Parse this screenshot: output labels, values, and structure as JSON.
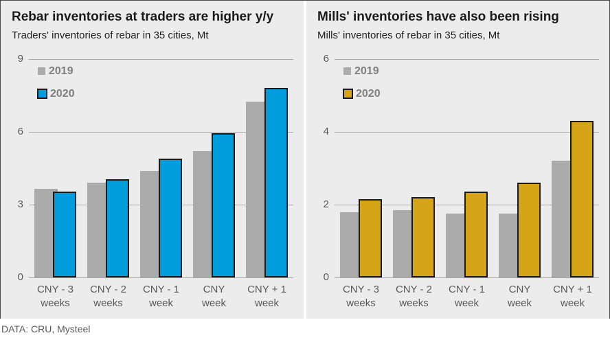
{
  "figure": {
    "footer": "DATA: CRU, Mysteel"
  },
  "colors": {
    "panel_background": "#ececec",
    "gridline": "#a6a6a6",
    "bar_outline": "#1a1a1a",
    "series_2019_gray": "#ababab",
    "series_2020_blue": "#009ddd",
    "series_2020_gold": "#d5a417",
    "axis_text": "#595959",
    "legend_text": "#7f7f7f",
    "outer_border": "#4a4a4a"
  },
  "chart_data": [
    {
      "type": "bar",
      "title": "Rebar inventories at traders are higher y/y",
      "subtitle": "Traders' inventories of rebar in 35 cities, Mt",
      "categories": [
        "CNY - 3\nweeks",
        "CNY - 2\nweeks",
        "CNY - 1\nweek",
        "CNY\nweek",
        "CNY + 1\nweek"
      ],
      "series": [
        {
          "name": "2019",
          "color": "#ababab",
          "outlined": false,
          "values": [
            3.65,
            3.9,
            4.4,
            5.2,
            7.25
          ]
        },
        {
          "name": "2020",
          "color": "#009ddd",
          "outlined": true,
          "values": [
            3.55,
            4.05,
            4.9,
            5.95,
            7.8
          ]
        }
      ],
      "ylabel": "Mt",
      "ylim": [
        0,
        9
      ],
      "yticks": [
        0,
        3,
        6,
        9
      ],
      "grid": true,
      "legend_position": "top-left"
    },
    {
      "type": "bar",
      "title": "Mills' inventories have also been rising",
      "subtitle": "Mills' inventories of rebar in 35 cities, Mt",
      "categories": [
        "CNY - 3\nweeks",
        "CNY - 2\nweeks",
        "CNY - 1\nweek",
        "CNY\nweek",
        "CNY + 1\nweek"
      ],
      "series": [
        {
          "name": "2019",
          "color": "#ababab",
          "outlined": false,
          "values": [
            1.8,
            1.85,
            1.75,
            1.75,
            3.2
          ]
        },
        {
          "name": "2020",
          "color": "#d5a417",
          "outlined": true,
          "values": [
            2.15,
            2.2,
            2.35,
            2.6,
            4.3
          ]
        }
      ],
      "ylabel": "Mt",
      "ylim": [
        0,
        6
      ],
      "yticks": [
        0,
        2,
        4,
        6
      ],
      "grid": true,
      "legend_position": "top-left"
    }
  ]
}
